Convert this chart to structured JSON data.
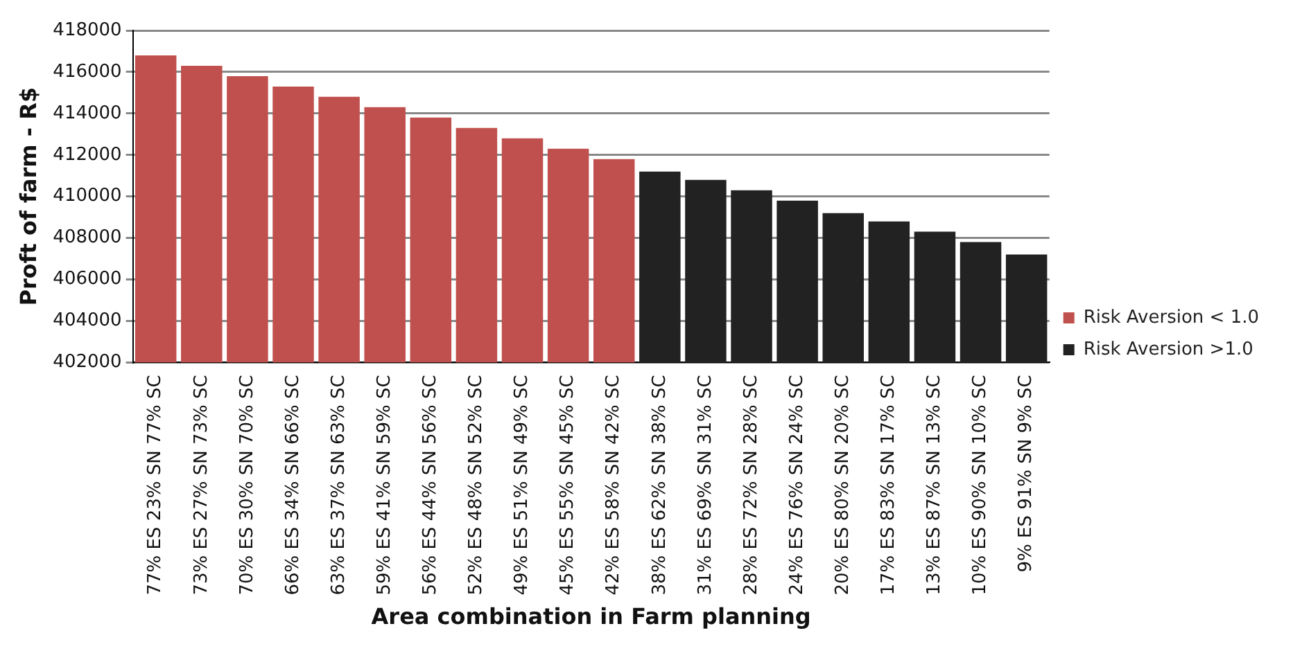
{
  "chart_data": {
    "type": "bar",
    "xlabel": "Area combination in Farm planning",
    "ylabel": "Proft of farm - R$",
    "categories": [
      "77% ES 23% SN 77% SC",
      "73% ES 27% SN 73% SC",
      "70% ES 30% SN 70% SC",
      "66% ES 34% SN 66% SC",
      "63% ES 37% SN 63% SC",
      "59% ES 41% SN 59% SC",
      "56% ES 44% SN 56% SC",
      "52% ES 48% SN 52% SC",
      "49% ES 51% SN 49% SC",
      "45% ES 55% SN 45% SC",
      "42% ES 58% SN 42% SC",
      "38% ES 62% SN 38% SC",
      "31% ES 69% SN 31% SC",
      "28% ES 72% SN 28% SC",
      "24% ES 76% SN 24% SC",
      "20% ES 80% SN 20% SC",
      "17% ES 83% SN 17% SC",
      "13% ES 87% SN 13% SC",
      "10% ES 90% SN 10% SC",
      "9% ES 91% SN 9% SC"
    ],
    "series": [
      {
        "name": "Risk Aversion < 1.0",
        "color": "#c0504d",
        "values": [
          416800,
          416300,
          415800,
          415300,
          414800,
          414300,
          413800,
          413300,
          412800,
          412300,
          411800,
          null,
          null,
          null,
          null,
          null,
          null,
          null,
          null,
          null
        ]
      },
      {
        "name": "Risk Aversion >1.0",
        "color": "#222222",
        "values": [
          null,
          null,
          null,
          null,
          null,
          null,
          null,
          null,
          null,
          null,
          null,
          411200,
          410800,
          410300,
          409800,
          409200,
          408800,
          408300,
          407800,
          407200
        ]
      }
    ],
    "ylim": [
      402000,
      418000
    ],
    "yticks": [
      402000,
      404000,
      406000,
      408000,
      410000,
      412000,
      414000,
      416000,
      418000
    ],
    "grid": "y",
    "legend": "right"
  }
}
